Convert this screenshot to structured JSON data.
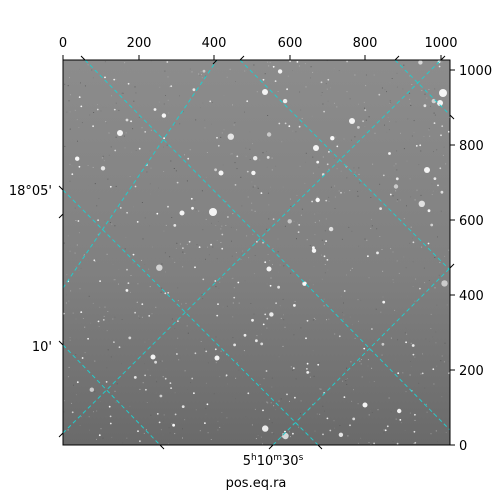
{
  "figure": {
    "xlabel": "pos.eq.ra",
    "x_ticks": [
      "0",
      "200",
      "400",
      "600",
      "800",
      "1000"
    ],
    "y_ticks": [
      "0",
      "200",
      "400",
      "600",
      "800",
      "1000"
    ],
    "ra_label_main": "5",
    "ra_label_h": "h",
    "ra_label_min": "10",
    "ra_label_m": "m",
    "ra_label_sec": "30",
    "ra_label_s": "s",
    "dec_label_1": "18°05'",
    "dec_label_2": "10'",
    "grid_color": "#22cccc",
    "image_style": "grayscale star field"
  }
}
